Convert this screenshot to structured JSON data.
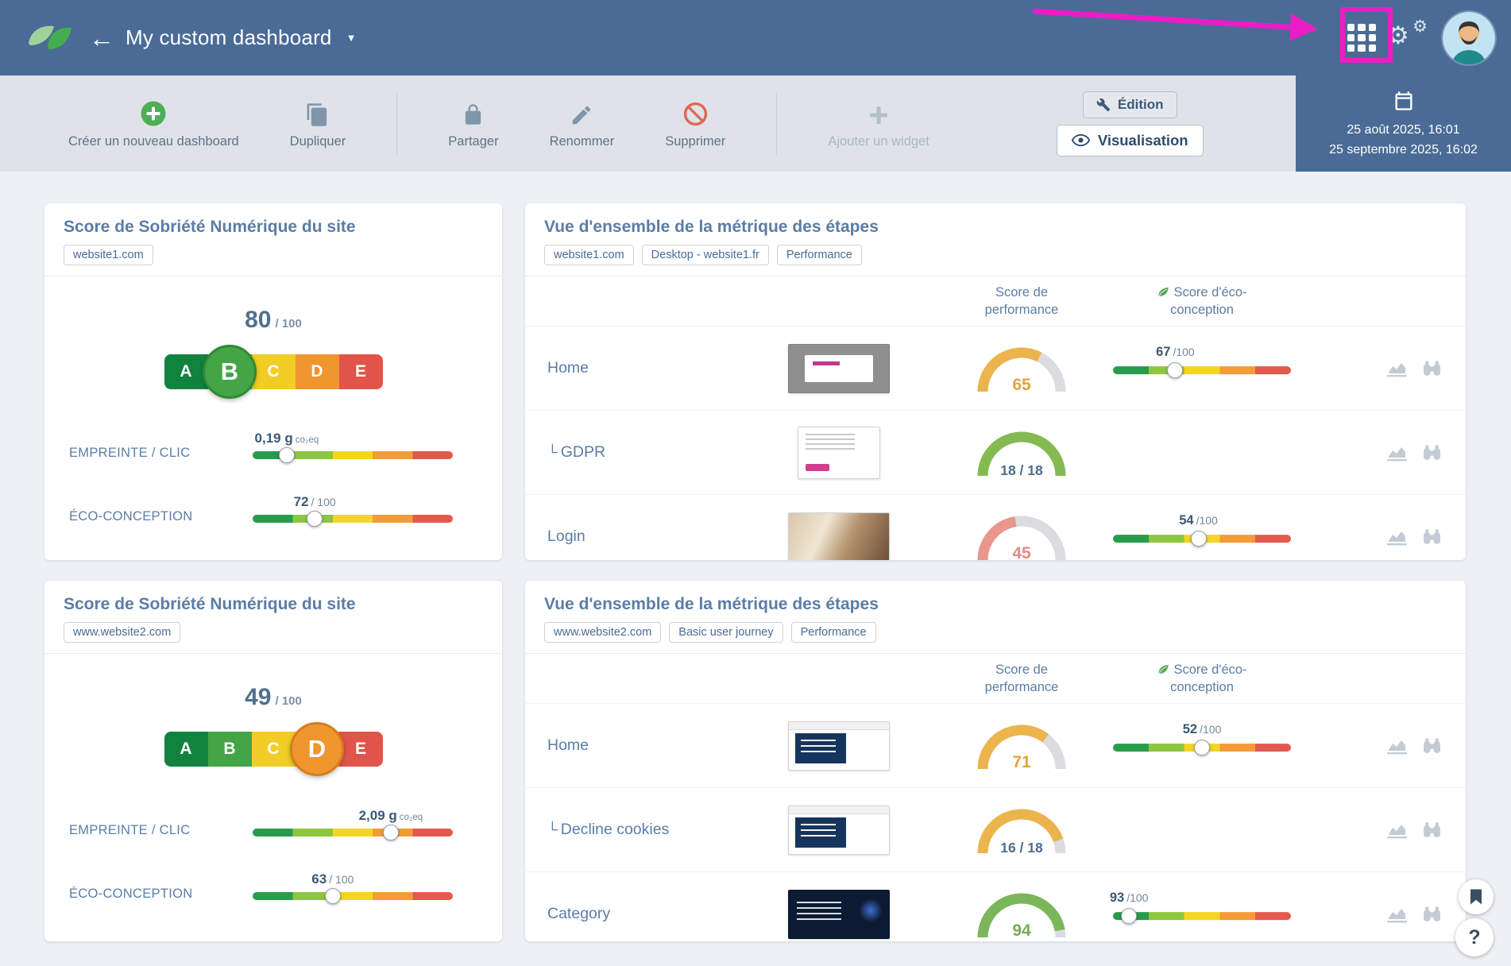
{
  "colors": {
    "header": "#4a6b96",
    "annotation": "#ea1ec6",
    "scale_gradient": [
      "#279c4d",
      "#8dc63f",
      "#f4d523",
      "#f49b38",
      "#e3594e"
    ],
    "gauge_track": "#dadcdf"
  },
  "header": {
    "title": "My custom dashboard",
    "back_icon": "←",
    "caret_icon": "▼"
  },
  "toolbar": {
    "actions": [
      {
        "id": "create",
        "label": "Créer un nouveau dashboard",
        "icon": "plus-circle",
        "disabled": false
      },
      {
        "id": "duplicate",
        "label": "Dupliquer",
        "icon": "copy",
        "disabled": false
      },
      {
        "divider": true
      },
      {
        "id": "share",
        "label": "Partager",
        "icon": "lock",
        "disabled": false
      },
      {
        "id": "rename",
        "label": "Renommer",
        "icon": "pencil",
        "disabled": false
      },
      {
        "id": "delete",
        "label": "Supprimer",
        "icon": "no-entry",
        "disabled": false
      },
      {
        "divider": true
      },
      {
        "id": "add-widget",
        "label": "Ajouter un widget",
        "icon": "plus",
        "disabled": true
      }
    ],
    "edition_label": "Édition",
    "visualisation_label": "Visualisation",
    "date_start": "25 août 2025, 16:01",
    "date_end": "25 septembre 2025, 16:02"
  },
  "cards": {
    "sobriety": [
      {
        "title": "Score de Sobriété Numérique du site",
        "tags": [
          "website1.com"
        ],
        "score": "80",
        "score_max": "/ 100",
        "grades": [
          {
            "letter": "A",
            "color": "#12833f"
          },
          {
            "letter": "B",
            "color": "#44a546"
          },
          {
            "letter": "C",
            "color": "#f2cd25"
          },
          {
            "letter": "D",
            "color": "#f0962f"
          },
          {
            "letter": "E",
            "color": "#e1544a"
          }
        ],
        "active": {
          "letter": "B",
          "index": 1,
          "color": "#44a546",
          "border": "#2e8a33"
        },
        "metrics": [
          {
            "label": "EMPREINTE / CLIC",
            "value": "0,19 g",
            "unit": "co₂eq",
            "unit_class": "sm",
            "marker": "17%"
          },
          {
            "label": "ÉCO-CONCEPTION",
            "value": "72",
            "unit": "/ 100",
            "unit_class": "md",
            "marker": "31%"
          }
        ]
      },
      {
        "title": "Score de Sobriété Numérique du site",
        "tags": [
          "www.website2.com"
        ],
        "score": "49",
        "score_max": "/ 100",
        "grades": [
          {
            "letter": "A",
            "color": "#12833f"
          },
          {
            "letter": "B",
            "color": "#44a546"
          },
          {
            "letter": "C",
            "color": "#f2cd25"
          },
          {
            "letter": "D",
            "color": "#f0962f"
          },
          {
            "letter": "E",
            "color": "#e1544a"
          }
        ],
        "active": {
          "letter": "D",
          "index": 3,
          "color": "#f0962f",
          "border": "#d87c1e"
        },
        "metrics": [
          {
            "label": "EMPREINTE / CLIC",
            "value": "2,09 g",
            "unit": "co₂eq",
            "unit_class": "sm",
            "marker": "69%"
          },
          {
            "label": "ÉCO-CONCEPTION",
            "value": "63",
            "unit": "/ 100",
            "unit_class": "md",
            "marker": "40%"
          }
        ]
      }
    ],
    "metrics": [
      {
        "title": "Vue d'ensemble de la métrique des étapes",
        "tags": [
          "website1.com",
          "Desktop - website1.fr",
          "Performance"
        ],
        "col_performance": "Score de performance",
        "col_eco": "Score d'éco-conception",
        "rows": [
          {
            "name": "Home",
            "sub": false,
            "thumb": "thumb-gray",
            "gauge": {
              "pct": 65,
              "label": "65",
              "color": "#ecb44c",
              "label_color": "#e5a43e",
              "small": false
            },
            "eco": {
              "value": "67",
              "max": "/100",
              "marker": "35%"
            }
          },
          {
            "name": "GDPR",
            "sub": true,
            "thumb": "thumb-white",
            "gauge": {
              "pct": 100,
              "label": "18 / 18",
              "color": "#84ba52",
              "label_color": "#4e6d8d",
              "small": true
            },
            "eco": null
          },
          {
            "name": "Login",
            "sub": false,
            "thumb": "thumb-photo",
            "gauge": {
              "pct": 45,
              "label": "45",
              "color": "#e9968c",
              "label_color": "#e58a80",
              "small": false
            },
            "eco": {
              "value": "54",
              "max": "/100",
              "marker": "48%"
            }
          }
        ]
      },
      {
        "title": "Vue d'ensemble de la métrique des étapes",
        "tags": [
          "www.website2.com",
          "Basic user journey",
          "Performance"
        ],
        "col_performance": "Score de performance",
        "col_eco": "Score d'éco-conception",
        "rows": [
          {
            "name": "Home",
            "sub": false,
            "thumb": "thumb-hero",
            "gauge": {
              "pct": 71,
              "label": "71",
              "color": "#ecb44c",
              "label_color": "#e5a43e",
              "small": false
            },
            "eco": {
              "value": "52",
              "max": "/100",
              "marker": "50%"
            }
          },
          {
            "name": "Decline cookies",
            "sub": true,
            "thumb": "thumb-hero",
            "gauge": {
              "pct": 89,
              "label": "16 / 18",
              "color": "#ecb44c",
              "label_color": "#4e6d8d",
              "small": true
            },
            "eco": null
          },
          {
            "name": "Category",
            "sub": false,
            "thumb": "thumb-dark",
            "gauge": {
              "pct": 94,
              "label": "94",
              "color": "#7bb75a",
              "label_color": "#74ad53",
              "small": false
            },
            "eco": {
              "value": "93",
              "max": "/100",
              "marker": "9%"
            }
          }
        ]
      }
    ]
  },
  "floating": {
    "help_label": "?"
  }
}
